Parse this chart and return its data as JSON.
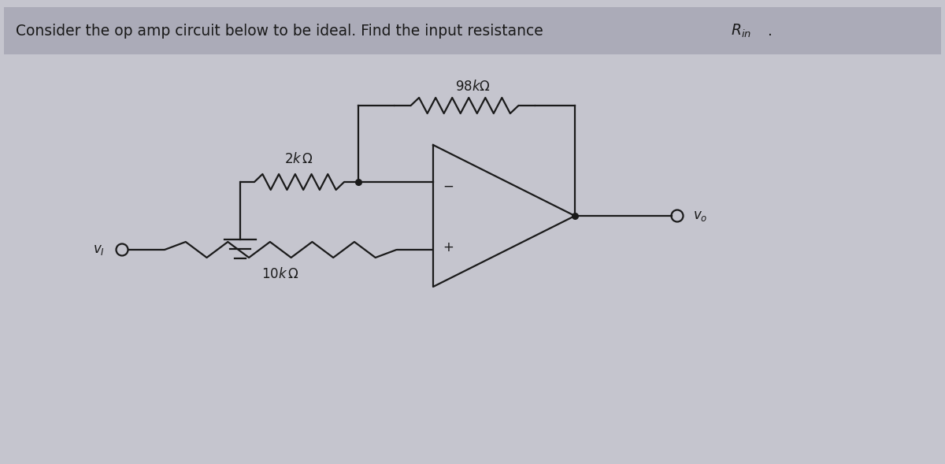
{
  "bg_color": "#c5c5ce",
  "title_bg": "#ababb8",
  "line_color": "#1a1a1a",
  "text_color": "#1a1a1a",
  "fig_width": 12.0,
  "fig_height": 5.89,
  "title_text": "Consider the op amp circuit below to be ideal. Find the input resistance ",
  "rin_label": "$R_{in}$",
  "rin_dot": ".",
  "label_98k": "$98k\\Omega$",
  "label_2k": "$2k\\,\\Omega$",
  "label_10k": "$10k\\,\\Omega$",
  "label_vi": "$v_I$",
  "label_vo": "$v_o$"
}
